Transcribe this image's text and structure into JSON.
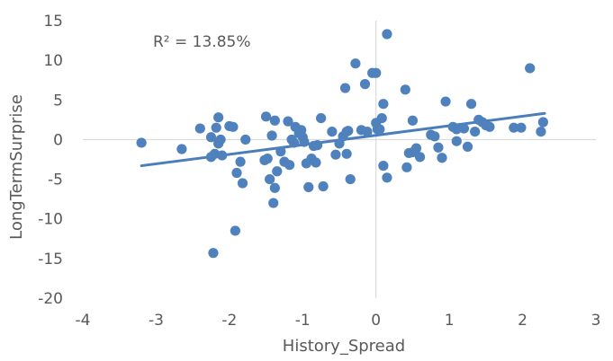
{
  "chart_data": {
    "type": "scatter",
    "xlabel": "History_Spread",
    "ylabel": "LongTermSurprise",
    "xlim": [
      -4,
      3
    ],
    "ylim": [
      -20,
      15
    ],
    "xticks": [
      -4,
      -3,
      -2,
      -1,
      0,
      1,
      2,
      3
    ],
    "yticks": [
      -20,
      -15,
      -10,
      -5,
      0,
      5,
      10,
      15
    ],
    "xtick_labels": [
      "-4",
      "-3",
      "-2",
      "-1",
      "0",
      "1",
      "2",
      "3"
    ],
    "ytick_labels": [
      "-20",
      "-15",
      "-10",
      "-5",
      "0",
      "5",
      "10",
      "15"
    ],
    "annotation": "R² = 13.85%",
    "grid": false,
    "legend": "none",
    "marker_color": "#4f81bd",
    "trendline_color": "#4a7ebb",
    "axis_color": "#d9d9d9",
    "trendline": {
      "x": [
        -3.2,
        2.3
      ],
      "y": [
        -3.3,
        3.3
      ]
    },
    "points": [
      [
        -3.2,
        -0.4
      ],
      [
        -2.65,
        -1.2
      ],
      [
        -2.4,
        1.4
      ],
      [
        -2.25,
        0.3
      ],
      [
        -2.2,
        -1.8
      ],
      [
        -2.25,
        -2.2
      ],
      [
        -2.22,
        -14.3
      ],
      [
        -2.15,
        2.8
      ],
      [
        -2.12,
        0.0
      ],
      [
        -2.15,
        -0.5
      ],
      [
        -2.1,
        -2.0
      ],
      [
        -2.18,
        1.5
      ],
      [
        -2.0,
        1.7
      ],
      [
        -1.95,
        1.6
      ],
      [
        -1.92,
        -11.5
      ],
      [
        -1.9,
        -4.2
      ],
      [
        -1.85,
        -2.8
      ],
      [
        -1.82,
        -5.5
      ],
      [
        -1.78,
        0.0
      ],
      [
        -1.5,
        2.9
      ],
      [
        -1.52,
        -2.6
      ],
      [
        -1.48,
        -2.4
      ],
      [
        -1.42,
        0.5
      ],
      [
        -1.38,
        2.4
      ],
      [
        -1.45,
        -5.0
      ],
      [
        -1.4,
        -8.0
      ],
      [
        -1.38,
        -6.1
      ],
      [
        -1.35,
        -4.0
      ],
      [
        -1.3,
        -1.5
      ],
      [
        -1.25,
        -2.8
      ],
      [
        -1.2,
        2.3
      ],
      [
        -1.18,
        -3.2
      ],
      [
        -1.15,
        0.0
      ],
      [
        -1.12,
        -0.4
      ],
      [
        -1.1,
        1.6
      ],
      [
        -1.05,
        0.8
      ],
      [
        -1.02,
        1.2
      ],
      [
        -1.0,
        0.3
      ],
      [
        -0.98,
        -0.3
      ],
      [
        -0.95,
        -3.0
      ],
      [
        -0.92,
        -6.0
      ],
      [
        -0.88,
        -2.4
      ],
      [
        -0.85,
        -0.8
      ],
      [
        -0.82,
        -2.9
      ],
      [
        -0.8,
        -0.7
      ],
      [
        -0.75,
        2.7
      ],
      [
        -0.72,
        -5.9
      ],
      [
        -0.6,
        1.0
      ],
      [
        -0.55,
        -1.9
      ],
      [
        -0.5,
        -0.5
      ],
      [
        -0.45,
        0.4
      ],
      [
        -0.42,
        6.5
      ],
      [
        -0.4,
        1.0
      ],
      [
        -0.38,
        1.1
      ],
      [
        -0.4,
        -1.8
      ],
      [
        -0.35,
        -5.0
      ],
      [
        -0.28,
        9.6
      ],
      [
        -0.2,
        1.2
      ],
      [
        -0.15,
        7.0
      ],
      [
        -0.12,
        1.0
      ],
      [
        -0.05,
        8.4
      ],
      [
        0.0,
        8.4
      ],
      [
        0.0,
        2.1
      ],
      [
        0.02,
        1.3
      ],
      [
        0.05,
        1.3
      ],
      [
        0.08,
        2.7
      ],
      [
        0.1,
        -3.3
      ],
      [
        0.1,
        4.5
      ],
      [
        0.15,
        -4.8
      ],
      [
        0.15,
        13.3
      ],
      [
        0.4,
        6.3
      ],
      [
        0.42,
        -3.5
      ],
      [
        0.45,
        -1.7
      ],
      [
        0.5,
        -1.6
      ],
      [
        0.5,
        2.4
      ],
      [
        0.55,
        -1.1
      ],
      [
        0.6,
        -2.2
      ],
      [
        0.75,
        0.6
      ],
      [
        0.8,
        0.4
      ],
      [
        0.85,
        -1.0
      ],
      [
        0.9,
        -2.3
      ],
      [
        0.95,
        4.8
      ],
      [
        1.05,
        1.6
      ],
      [
        1.1,
        1.3
      ],
      [
        1.1,
        -0.2
      ],
      [
        1.2,
        1.4
      ],
      [
        1.25,
        -0.9
      ],
      [
        1.3,
        4.5
      ],
      [
        1.35,
        1.0
      ],
      [
        1.4,
        2.5
      ],
      [
        1.45,
        2.2
      ],
      [
        1.5,
        1.8
      ],
      [
        1.55,
        1.6
      ],
      [
        1.88,
        1.5
      ],
      [
        1.98,
        1.5
      ],
      [
        2.1,
        9.0
      ],
      [
        2.25,
        1.0
      ],
      [
        2.28,
        2.2
      ]
    ]
  }
}
